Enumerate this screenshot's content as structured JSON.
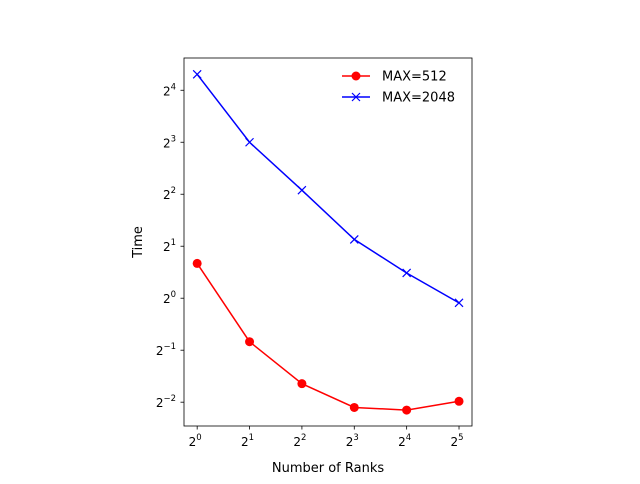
{
  "chart_data": {
    "type": "line",
    "title": "",
    "xlabel": "Number of Ranks",
    "ylabel": "Time",
    "x_scale": "log2",
    "y_scale": "log2",
    "x": [
      1,
      2,
      4,
      8,
      16,
      32
    ],
    "x_tick_exponents": [
      "0",
      "1",
      "2",
      "3",
      "4",
      "5"
    ],
    "y_tick_exponents": [
      "4",
      "3",
      "2",
      "1",
      "0",
      "−1",
      "−2"
    ],
    "tick_base": "2",
    "xlim": [
      0.84,
      38
    ],
    "ylim": [
      0.182,
      24.6
    ],
    "grid": false,
    "legend_position": "top-right",
    "series": [
      {
        "name": "MAX=512",
        "color": "#ff0000",
        "marker": "circle",
        "values": [
          1.59,
          0.56,
          0.32,
          0.233,
          0.225,
          0.253
        ]
      },
      {
        "name": "MAX=2048",
        "color": "#0000ff",
        "marker": "x",
        "values": [
          19.8,
          8.0,
          4.22,
          2.19,
          1.4,
          0.94
        ]
      }
    ]
  }
}
